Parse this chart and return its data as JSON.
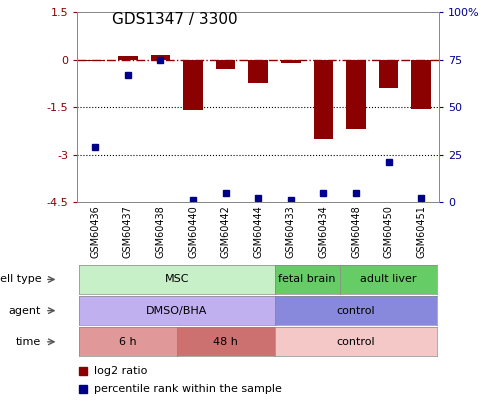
{
  "title": "GDS1347 / 3300",
  "samples": [
    "GSM60436",
    "GSM60437",
    "GSM60438",
    "GSM60440",
    "GSM60442",
    "GSM60444",
    "GSM60433",
    "GSM60434",
    "GSM60448",
    "GSM60450",
    "GSM60451"
  ],
  "log2_ratio": [
    -0.05,
    0.12,
    0.15,
    -1.6,
    -0.3,
    -0.75,
    -0.12,
    -2.5,
    -2.2,
    -0.9,
    -1.55
  ],
  "percentile_rank": [
    29,
    67,
    75,
    1,
    5,
    2,
    1,
    5,
    5,
    21,
    2
  ],
  "ylim": [
    -4.5,
    1.5
  ],
  "right_ylim": [
    0,
    100
  ],
  "right_yticks": [
    0,
    25,
    50,
    75,
    100
  ],
  "right_yticklabels": [
    "0",
    "25",
    "50",
    "75",
    "100%"
  ],
  "left_yticks": [
    -4.5,
    -3.0,
    -1.5,
    0.0,
    1.5
  ],
  "left_yticklabels": [
    "-4.5",
    "-3",
    "-1.5",
    "0",
    "1.5"
  ],
  "bar_color": "#8B0000",
  "dot_color": "#00008B",
  "hline_y": 0.0,
  "dotted_lines": [
    -1.5,
    -3.0
  ],
  "cell_type_groups": [
    {
      "label": "MSC",
      "start": 0,
      "end": 5,
      "color": "#c8f0c8"
    },
    {
      "label": "fetal brain",
      "start": 6,
      "end": 7,
      "color": "#66cc66"
    },
    {
      "label": "adult liver",
      "start": 8,
      "end": 10,
      "color": "#66cc66"
    }
  ],
  "agent_groups": [
    {
      "label": "DMSO/BHA",
      "start": 0,
      "end": 5,
      "color": "#c0b0f0"
    },
    {
      "label": "control",
      "start": 6,
      "end": 10,
      "color": "#8888dd"
    }
  ],
  "time_groups": [
    {
      "label": "6 h",
      "start": 0,
      "end": 2,
      "color": "#e09898"
    },
    {
      "label": "48 h",
      "start": 3,
      "end": 5,
      "color": "#cc7070"
    },
    {
      "label": "control",
      "start": 6,
      "end": 10,
      "color": "#f5c8c8"
    }
  ],
  "legend_items": [
    {
      "label": "log2 ratio",
      "color": "#8B0000"
    },
    {
      "label": "percentile rank within the sample",
      "color": "#00008B"
    }
  ],
  "row_labels": [
    "cell type",
    "agent",
    "time"
  ],
  "bg_color": "#ffffff"
}
